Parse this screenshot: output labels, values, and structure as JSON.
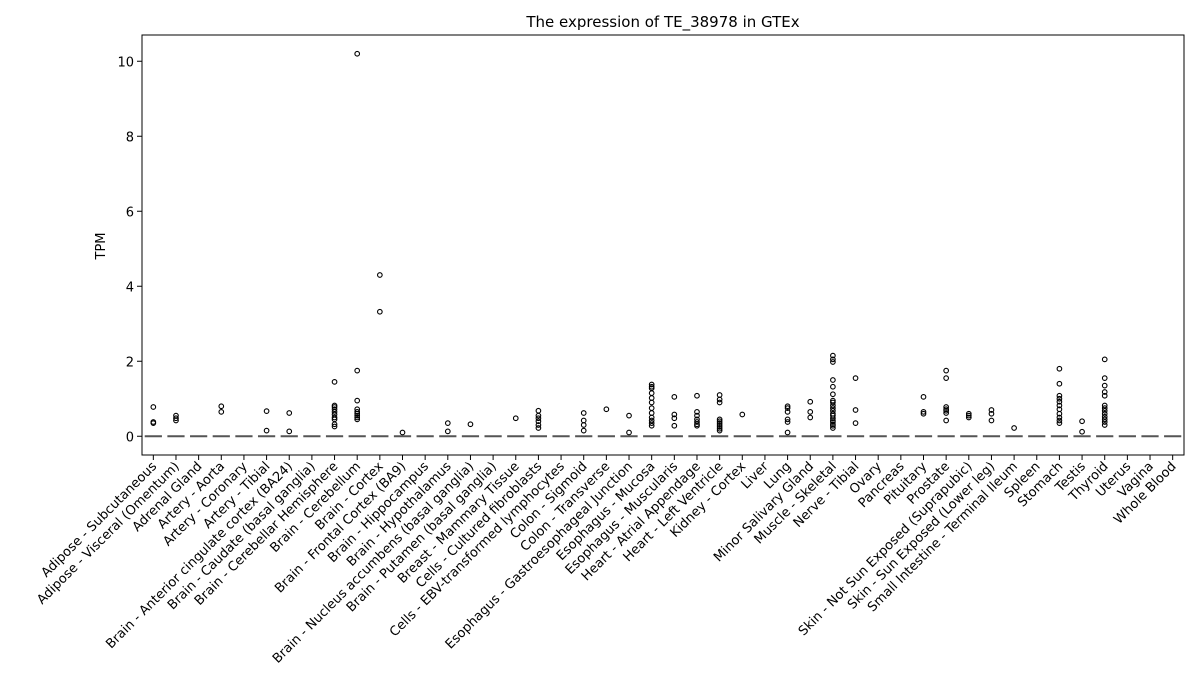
{
  "chart_data": {
    "type": "box",
    "title": "The expression of TE_38978 in GTEx",
    "xlabel": "",
    "ylabel": "TPM",
    "ylim": [
      -0.5,
      10.7
    ],
    "yticks": [
      0,
      2,
      4,
      6,
      8,
      10
    ],
    "grid": false,
    "legend": "none",
    "categories": [
      "Adipose - Subcutaneous",
      "Adipose - Visceral (Omentum)",
      "Adrenal Gland",
      "Artery - Aorta",
      "Artery - Coronary",
      "Artery - Tibial",
      "Brain - Anterior cingulate cortex (BA24)",
      "Brain - Caudate (basal ganglia)",
      "Brain - Cerebellar Hemisphere",
      "Brain - Cerebellum",
      "Brain - Cortex",
      "Brain - Frontal Cortex (BA9)",
      "Brain - Hippocampus",
      "Brain - Hypothalamus",
      "Brain - Nucleus accumbens (basal ganglia)",
      "Brain - Putamen (basal ganglia)",
      "Breast - Mammary Tissue",
      "Cells - Cultured fibroblasts",
      "Cells - EBV-transformed lymphocytes",
      "Colon - Sigmoid",
      "Colon - Transverse",
      "Esophagus - Gastroesophageal Junction",
      "Esophagus - Mucosa",
      "Esophagus - Muscularis",
      "Heart - Atrial Appendage",
      "Heart - Left Ventricle",
      "Kidney - Cortex",
      "Liver",
      "Lung",
      "Minor Salivary Gland",
      "Muscle - Skeletal",
      "Nerve - Tibial",
      "Ovary",
      "Pancreas",
      "Pituitary",
      "Prostate",
      "Skin - Not Sun Exposed (Suprapubic)",
      "Skin - Sun Exposed (Lower leg)",
      "Small Intestine - Terminal Ileum",
      "Spleen",
      "Stomach",
      "Testis",
      "Thyroid",
      "Uterus",
      "Vagina",
      "Whole Blood"
    ],
    "median": [
      0,
      0,
      0,
      0,
      0,
      0,
      0,
      0,
      0,
      0,
      0,
      0,
      0,
      0,
      0,
      0,
      0,
      0,
      0,
      0,
      0,
      0,
      0,
      0,
      0,
      0,
      0,
      0,
      0,
      0,
      0,
      0,
      0,
      0,
      0,
      0,
      0,
      0,
      0,
      0,
      0,
      0,
      0,
      0,
      0,
      0
    ],
    "outliers": [
      [
        0.78,
        0.38,
        0.35
      ],
      [
        0.55,
        0.48,
        0.42
      ],
      [],
      [
        0.8,
        0.65
      ],
      [],
      [
        0.67,
        0.15
      ],
      [
        0.62,
        0.13
      ],
      [],
      [
        1.45,
        0.82,
        0.78,
        0.72,
        0.65,
        0.58,
        0.5,
        0.45,
        0.32,
        0.26
      ],
      [
        10.2,
        1.75,
        0.95,
        0.72,
        0.65,
        0.6,
        0.55,
        0.5,
        0.45
      ],
      [
        4.3,
        3.32
      ],
      [
        0.1
      ],
      [],
      [
        0.35,
        0.13
      ],
      [
        0.32
      ],
      [],
      [
        0.48
      ],
      [
        0.68,
        0.55,
        0.48,
        0.4,
        0.3,
        0.22
      ],
      [],
      [
        0.62,
        0.42,
        0.3,
        0.15
      ],
      [
        0.72
      ],
      [
        0.55,
        0.1
      ],
      [
        1.38,
        1.32,
        1.28,
        1.15,
        1.02,
        0.9,
        0.75,
        0.62,
        0.5,
        0.42,
        0.35,
        0.28
      ],
      [
        1.05,
        0.58,
        0.48,
        0.28
      ],
      [
        1.08,
        0.65,
        0.55,
        0.45,
        0.38,
        0.32,
        0.28
      ],
      [
        1.1,
        0.98,
        0.9,
        0.45,
        0.4,
        0.35,
        0.3,
        0.25,
        0.2,
        0.15
      ],
      [
        0.58
      ],
      [],
      [
        0.8,
        0.75,
        0.65,
        0.45,
        0.38,
        0.1
      ],
      [
        0.92,
        0.65,
        0.5
      ],
      [
        2.15,
        2.05,
        1.98,
        1.5,
        1.32,
        1.12,
        0.95,
        0.9,
        0.82,
        0.75,
        0.68,
        0.6,
        0.55,
        0.48,
        0.42,
        0.38,
        0.32,
        0.28,
        0.22
      ],
      [
        1.55,
        0.7,
        0.35
      ],
      [],
      [],
      [
        1.05,
        0.65,
        0.6
      ],
      [
        1.75,
        1.55,
        0.78,
        0.72,
        0.68,
        0.62,
        0.42
      ],
      [
        0.6,
        0.55,
        0.5
      ],
      [
        0.7,
        0.6,
        0.42
      ],
      [
        0.22
      ],
      [],
      [
        1.8,
        1.4,
        1.08,
        1.0,
        0.92,
        0.82,
        0.72,
        0.6,
        0.5,
        0.42,
        0.35
      ],
      [
        0.4,
        0.12
      ],
      [
        2.05,
        1.55,
        1.35,
        1.18,
        1.08,
        0.82,
        0.75,
        0.68,
        0.6,
        0.52,
        0.45,
        0.38,
        0.3
      ],
      [],
      [],
      []
    ]
  }
}
